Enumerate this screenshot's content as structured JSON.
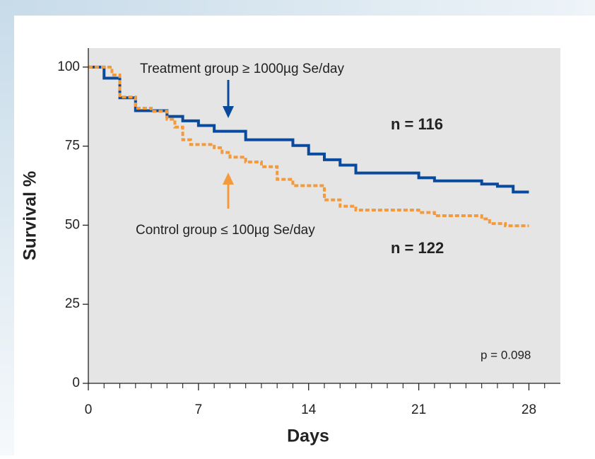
{
  "chart_data": {
    "type": "step",
    "xlabel": "Days",
    "ylabel": "Survival %",
    "xlim": [
      0,
      30
    ],
    "ylim": [
      0,
      106
    ],
    "xticks": [
      0,
      7,
      14,
      21,
      28
    ],
    "yticks": [
      0,
      25,
      50,
      75,
      100
    ],
    "xminorticks": [
      1,
      2,
      3,
      4,
      5,
      6,
      8,
      9,
      10,
      11,
      12,
      13,
      15,
      16,
      17,
      18,
      19,
      20,
      22,
      23,
      24,
      25,
      26,
      27,
      29
    ],
    "series": [
      {
        "name": "Treatment group ≥ 1000µg Se/day",
        "color": "#0a4a9c",
        "dashed": false,
        "n_label": "n = 116",
        "x": [
          0,
          1,
          2,
          3,
          5,
          6,
          7,
          8,
          10,
          13,
          14,
          15,
          16,
          17,
          21,
          22,
          25,
          26,
          27,
          28
        ],
        "values": [
          100,
          96.5,
          90.3,
          86.2,
          84.4,
          83,
          81.5,
          79.7,
          77,
          75.2,
          72.5,
          70.7,
          69,
          66.5,
          65,
          64,
          63,
          62.3,
          60.5,
          60.5
        ]
      },
      {
        "name": "Control group ≤ 100µg Se/day",
        "color": "#f39a3c",
        "dashed": true,
        "n_label": "n = 122",
        "x": [
          0,
          1.5,
          2,
          3,
          4,
          5,
          5.5,
          6,
          6.5,
          8,
          8.5,
          9,
          10,
          11,
          12,
          13,
          15,
          16,
          17,
          21,
          22,
          25,
          25.5,
          26.5,
          28
        ],
        "values": [
          100,
          97.5,
          90.5,
          87,
          86,
          83.5,
          81,
          77,
          75.5,
          74.5,
          73,
          71.5,
          70,
          68.5,
          64.5,
          62.5,
          58,
          56,
          54.8,
          54,
          53,
          52,
          50.5,
          49.8,
          49.8
        ]
      }
    ],
    "annotation": "p = 0.098"
  }
}
